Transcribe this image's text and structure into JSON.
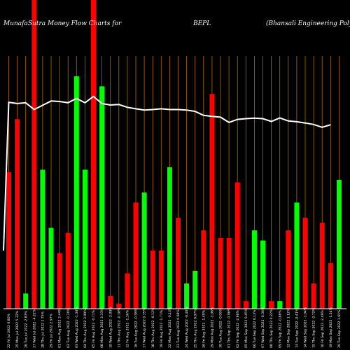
{
  "chart_data": {
    "type": "bar",
    "title_parts": [
      "MunafaSutra  Money Flow  Charts for",
      "BEPL",
      "(Bhansali  Engineering Polymers Limited) NSE"
    ],
    "colors": {
      "background": "#000000",
      "up": "#00ff00",
      "down": "#ff0000",
      "grid": "#b06a00",
      "line": "#ffffff"
    },
    "grid": true,
    "categories": [
      "22 Fri Jul 2022 0.80%",
      "25 Mon Jul 2022 5.22%",
      "26 Tue Jul 2022 -2.83%",
      "27 Wed Jul 2022 -4.22%",
      "28 Thu Jul 2022 1.75%",
      "29 Fri Jul 2022 2.97%",
      "01 Mon Aug 2022 3.44%",
      "02 Tue Aug 2022 -0.74%",
      "03 Wed Aug 2022 -1.30%",
      "04 Thu Aug 2022 3.99%",
      "05 Fri Aug 2022 -0.71%",
      "08 Mon Aug 2022 3.33%",
      "10 Wed Aug 2022 -2.09%",
      "11 Thu Aug 2022 -0.18%",
      "12 Fri Aug 2022 -1.36%",
      "16 Tue Aug 2022 -0.58%",
      "17 Wed Aug 2022 0.35%",
      "18 Thu Aug 2022 -0.12%",
      "19 Fri Aug 2022 -1.71%",
      "22 Mon Aug 2022 -0.13%",
      "23 Tue Aug 2022 0.68%",
      "24 Wed Aug 2022 -0.46%",
      "25 Thu Aug 2022 0.07%",
      "26 Fri Aug 2022 -1.40%",
      "29 Mon Aug 2022 -2.08%",
      "30 Tue Aug 2022 -0.06%",
      "01 Thu Sep 2022 -0.96%",
      "02 Fri Sep 2022 -2.96%",
      "05 Mon Sep 2022 0.45%",
      "06 Tue Sep 2022 0.13%",
      "07 Wed Sep 2022 -0.36%",
      "08 Thu Sep 2022 0.22%",
      "09 Fri Sep 2022 -0.86%",
      "12 Mon Sep 2022 1.12%",
      "13 Tue Sep 2022 -0.41%",
      "14 Wed Sep 2022 -1.04%",
      "15 Thu Sep 2022 -0.72%",
      "16 Fri Sep 2022 -2.49%",
      "19 Mon Sep 2022 -1.34%",
      "20 Tue Sep 2022 1.65%"
    ],
    "bar_colors": [
      "red",
      "red",
      "green",
      "red",
      "green",
      "green",
      "red",
      "red",
      "green",
      "green",
      "red",
      "green",
      "red",
      "red",
      "red",
      "red",
      "green",
      "red",
      "red",
      "green",
      "red",
      "green",
      "green",
      "red",
      "red",
      "red",
      "red",
      "red",
      "red",
      "green",
      "green",
      "red",
      "green",
      "red",
      "green",
      "red",
      "red",
      "red",
      "red",
      "green"
    ],
    "volume_fraction": [
      0.54,
      0.75,
      0.06,
      1.0,
      0.55,
      0.32,
      0.22,
      0.3,
      0.92,
      0.55,
      1.0,
      0.88,
      0.05,
      0.02,
      0.14,
      0.42,
      0.46,
      0.23,
      0.23,
      0.56,
      0.36,
      0.1,
      0.15,
      0.31,
      0.85,
      0.28,
      0.28,
      0.5,
      0.03,
      0.31,
      0.27,
      0.03,
      0.03,
      0.31,
      0.42,
      0.36,
      0.1,
      0.34,
      0.18,
      0.51
    ],
    "price_line": [
      0.23,
      0.817,
      0.812,
      0.815,
      0.788,
      0.805,
      0.822,
      0.82,
      0.815,
      0.832,
      0.815,
      0.84,
      0.812,
      0.806,
      0.808,
      0.797,
      0.791,
      0.786,
      0.788,
      0.791,
      0.788,
      0.788,
      0.786,
      0.781,
      0.765,
      0.761,
      0.758,
      0.737,
      0.749,
      0.752,
      0.754,
      0.752,
      0.741,
      0.755,
      0.743,
      0.74,
      0.735,
      0.729,
      0.718,
      0.728
    ]
  }
}
